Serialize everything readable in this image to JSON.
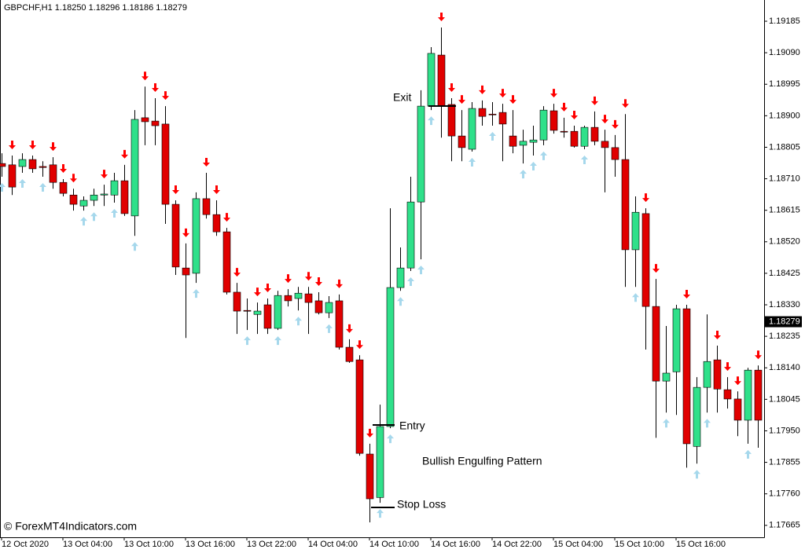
{
  "chart_data": {
    "type": "candlestick",
    "title": "GBPCHF,H1  1.18250 1.18296 1.18186 1.18279",
    "categories": [
      "12 Oct 2020",
      null,
      null,
      null,
      null,
      null,
      "13 Oct 04:00",
      null,
      null,
      null,
      null,
      null,
      "13 Oct 10:00",
      null,
      null,
      null,
      null,
      null,
      "13 Oct 16:00",
      null,
      null,
      null,
      null,
      null,
      "13 Oct 22:00",
      null,
      null,
      null,
      null,
      null,
      "14 Oct 04:00",
      null,
      null,
      null,
      null,
      null,
      "14 Oct 10:00",
      null,
      null,
      null,
      null,
      null,
      "14 Oct 16:00",
      null,
      null,
      null,
      null,
      null,
      "14 Oct 22:00",
      null,
      null,
      null,
      null,
      null,
      "15 Oct 04:00",
      null,
      null,
      null,
      null,
      null,
      "15 Oct 10:00",
      null,
      null,
      null,
      null,
      null,
      "15 Oct 16:00",
      null,
      null,
      null,
      null,
      null,
      null,
      null,
      null
    ],
    "ohlc": {
      "open": [
        1.18756,
        1.18752,
        1.18747,
        1.18768,
        1.18747,
        1.18752,
        1.18699,
        1.18661,
        1.18628,
        1.18645,
        1.18661,
        1.18661,
        1.18704,
        1.18598,
        1.18894,
        1.18884,
        1.18875,
        1.18633,
        1.18441,
        1.18425,
        1.1865,
        1.18602,
        1.1855,
        1.18368,
        1.18313,
        1.18301,
        1.1833,
        1.18259,
        1.18358,
        1.18349,
        1.18363,
        1.18342,
        1.18306,
        1.18342,
        1.18202,
        1.18164,
        1.1788,
        1.17749,
        1.17963,
        1.18382,
        1.18441,
        1.1864,
        1.18929,
        1.19083,
        1.18934,
        1.18839,
        1.18799,
        1.18922,
        1.18905,
        1.1891,
        1.18839,
        1.18811,
        1.1882,
        1.18827,
        1.18915,
        1.18853,
        1.18853,
        1.18808,
        1.18865,
        1.18823,
        1.18804,
        1.18768,
        1.18496,
        1.18605,
        1.18325,
        1.181,
        1.18128,
        1.18318,
        1.17903,
        1.18081,
        1.18164,
        1.18074,
        1.18046,
        1.17982,
        1.18133
      ],
      "high": [
        1.18787,
        1.1878,
        1.18787,
        1.1878,
        1.18763,
        1.18775,
        1.18709,
        1.1868,
        1.18657,
        1.1868,
        1.18692,
        1.18728,
        1.18752,
        1.18917,
        1.18988,
        1.18953,
        1.18929,
        1.18645,
        1.18515,
        1.18669,
        1.18728,
        1.18645,
        1.18562,
        1.18396,
        1.18349,
        1.18337,
        1.18349,
        1.18372,
        1.18377,
        1.18384,
        1.18384,
        1.18368,
        1.18356,
        1.18361,
        1.18226,
        1.18178,
        1.17911,
        1.18029,
        1.18621,
        1.18503,
        1.18716,
        1.18977,
        1.19107,
        1.19166,
        1.18953,
        1.18917,
        1.18941,
        1.18946,
        1.18941,
        1.18936,
        1.18917,
        1.18858,
        1.1887,
        1.18929,
        1.18936,
        1.18894,
        1.1887,
        1.1887,
        1.18913,
        1.18858,
        1.18842,
        1.18905,
        1.18657,
        1.18621,
        1.18408,
        1.18266,
        1.1833,
        1.1833,
        1.18112,
        1.18301,
        1.18207,
        1.18112,
        1.18069,
        1.1814,
        1.18147
      ],
      "low": [
        1.18716,
        1.18661,
        1.18728,
        1.18728,
        1.18716,
        1.1868,
        1.18657,
        1.18614,
        1.18614,
        1.18628,
        1.18628,
        1.18638,
        1.18598,
        1.18538,
        1.18811,
        1.18811,
        1.18574,
        1.1842,
        1.1823,
        1.18396,
        1.1859,
        1.18538,
        1.18361,
        1.18242,
        1.18254,
        1.18242,
        1.18242,
        1.18254,
        1.18325,
        1.18313,
        1.18242,
        1.18301,
        1.1829,
        1.18195,
        1.18155,
        1.17875,
        1.17674,
        1.17733,
        1.17958,
        1.18372,
        1.18432,
        1.18467,
        1.18917,
        1.18834,
        1.18763,
        1.18763,
        1.18792,
        1.1887,
        1.1887,
        1.18763,
        1.18787,
        1.18756,
        1.1878,
        1.18811,
        1.18846,
        1.18834,
        1.18804,
        1.18799,
        1.18811,
        1.18669,
        1.18716,
        1.18384,
        1.18384,
        1.18195,
        1.17929,
        1.18005,
        1.17998,
        1.17839,
        1.17851,
        1.18005,
        1.18005,
        1.18017,
        1.17934,
        1.17911,
        1.17899
      ],
      "close": [
        1.18747,
        1.18685,
        1.18768,
        1.1874,
        1.18744,
        1.18699,
        1.18666,
        1.18633,
        1.18645,
        1.18661,
        1.18664,
        1.18704,
        1.18605,
        1.18889,
        1.18882,
        1.1887,
        1.18633,
        1.18444,
        1.1842,
        1.1865,
        1.18602,
        1.1855,
        1.18368,
        1.18311,
        1.18311,
        1.18311,
        1.18259,
        1.18358,
        1.18342,
        1.18365,
        1.18337,
        1.18306,
        1.18337,
        1.18202,
        1.18159,
        1.17882,
        1.17745,
        1.17963,
        1.18382,
        1.18441,
        1.1864,
        1.18929,
        1.19088,
        1.18929,
        1.18839,
        1.18804,
        1.18922,
        1.18898,
        1.18903,
        1.18875,
        1.18808,
        1.18823,
        1.18827,
        1.18917,
        1.18856,
        1.18851,
        1.18808,
        1.18865,
        1.18823,
        1.18804,
        1.18768,
        1.18496,
        1.18609,
        1.18325,
        1.181,
        1.18124,
        1.18318,
        1.17911,
        1.18081,
        1.18159,
        1.18076,
        1.18046,
        1.17982,
        1.18133,
        1.17982
      ]
    },
    "up_color": "#2fe08a",
    "down_color": "#e00000",
    "signals": {
      "down": [
        1,
        3,
        5,
        6,
        7,
        10,
        12,
        14,
        15,
        16,
        17,
        18,
        20,
        21,
        22,
        23,
        25,
        26,
        28,
        30,
        31,
        33,
        34,
        35,
        36,
        43,
        44,
        45,
        47,
        49,
        50,
        54,
        55,
        56,
        58,
        59,
        60,
        61,
        63,
        64,
        67,
        70,
        71,
        72,
        74
      ],
      "down_color": "#ff0000",
      "up": [
        0,
        2,
        4,
        8,
        9,
        11,
        13,
        19,
        24,
        27,
        29,
        32,
        37,
        38,
        39,
        40,
        41,
        42,
        46,
        48,
        51,
        52,
        53,
        57,
        62,
        65,
        68,
        69,
        73
      ],
      "up_color": "#a6d8ec"
    },
    "ylim": [
      1.17629,
      1.19249
    ],
    "yticks": [
      1.19185,
      {
        "value": 1.1909,
        "label": "1.19090"
      },
      1.18995,
      {
        "value": 1.189,
        "label": "1.18900"
      },
      1.18805,
      {
        "value": 1.1871,
        "label": "1.18710"
      },
      1.18615,
      {
        "value": 1.1852,
        "label": "1.18520"
      },
      1.18425,
      {
        "value": 1.1833,
        "label": "1.18330"
      },
      1.18235,
      {
        "value": 1.1814,
        "label": "1.18140"
      },
      1.18045,
      {
        "value": 1.1795,
        "label": "1.17950"
      },
      1.17855,
      {
        "value": 1.1776,
        "label": "1.17760"
      },
      1.17665
    ],
    "current_price": 1.18279,
    "annotations": {
      "exit": "Exit",
      "entry": "Entry",
      "stop_loss": "Stop Loss",
      "pattern": "Bullish Engulfing Pattern"
    },
    "copyright": "© ForexMT4Indicators.com"
  }
}
